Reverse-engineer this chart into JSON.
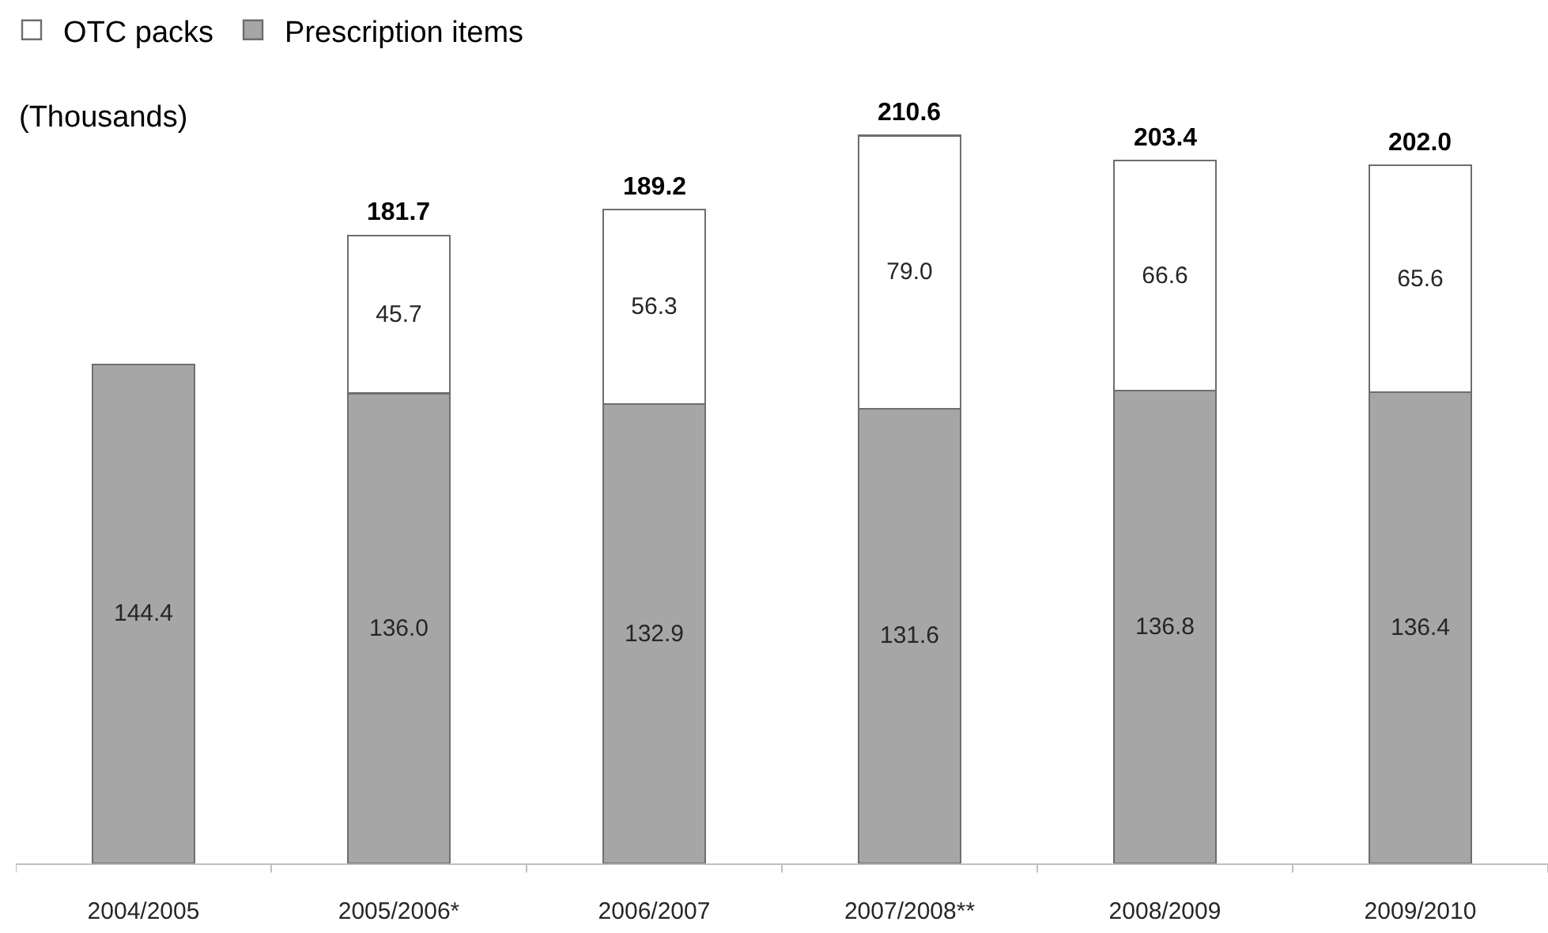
{
  "chart_data": {
    "type": "bar",
    "stacked": true,
    "ylabel": "(Thousands)",
    "categories": [
      "2004/2005",
      "2005/2006*",
      "2006/2007",
      "2007/2008**",
      "2008/2009",
      "2009/2010"
    ],
    "series": [
      {
        "name": "Prescription items",
        "color": "#a6a6a6",
        "values": [
          144.4,
          136.0,
          132.9,
          131.6,
          136.8,
          136.4
        ],
        "value_labels": [
          "144.4",
          "136.0",
          "132.9",
          "131.6",
          "136.8",
          "136.4"
        ]
      },
      {
        "name": "OTC packs",
        "color": "#ffffff",
        "values": [
          null,
          45.7,
          56.3,
          79.0,
          66.6,
          65.6
        ],
        "value_labels": [
          null,
          "45.7",
          "56.3",
          "79.0",
          "66.6",
          "65.6"
        ]
      }
    ],
    "totals": [
      null,
      "181.7",
      "189.2",
      "210.6",
      "203.4",
      "202.0"
    ],
    "legend": "top left"
  }
}
